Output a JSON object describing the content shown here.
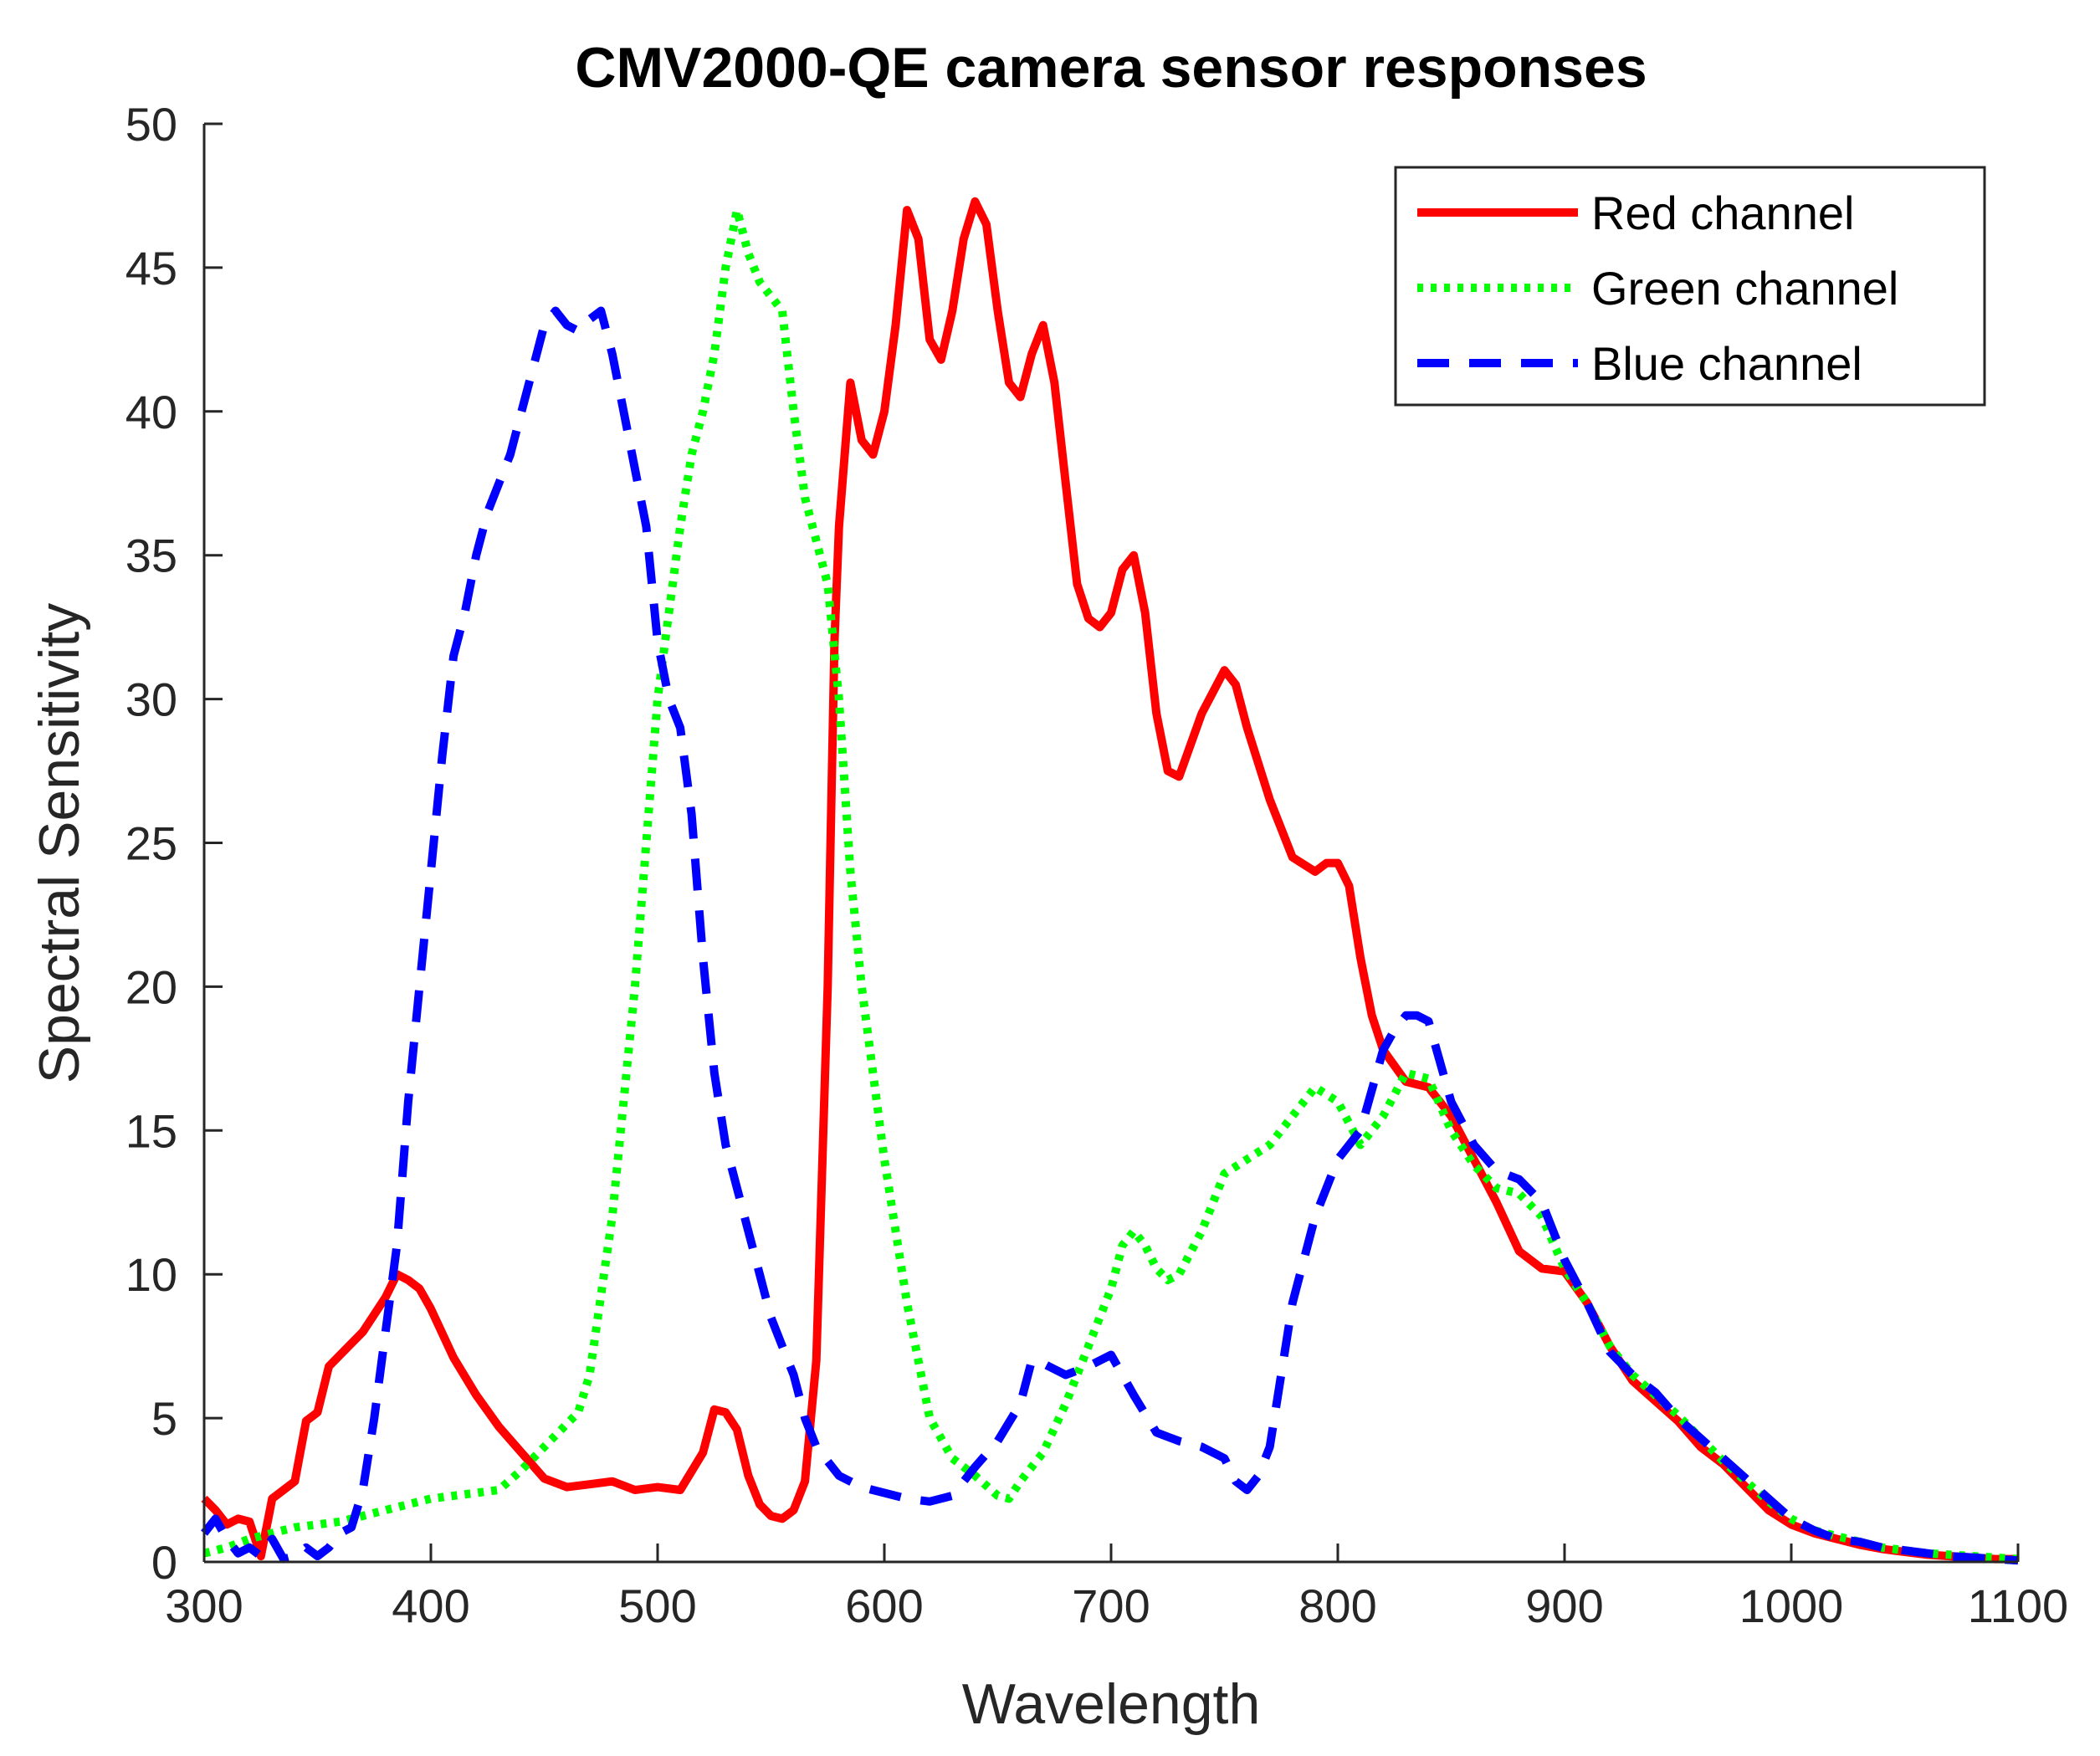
{
  "chart_data": {
    "type": "line",
    "title": "CMV2000-QE camera sensor responses",
    "xlabel": "Wavelength",
    "ylabel": "Spectral Sensitivity",
    "xlim": [
      300,
      1100
    ],
    "ylim": [
      0,
      50
    ],
    "xticks": [
      300,
      400,
      500,
      600,
      700,
      800,
      900,
      1000,
      1100
    ],
    "yticks": [
      0,
      5,
      10,
      15,
      20,
      25,
      30,
      35,
      40,
      45,
      50
    ],
    "grid": false,
    "legend_position": "top-right",
    "series": [
      {
        "name": "Red channel",
        "color": "#ff0000",
        "style": "solid",
        "x": [
          300,
          305,
          310,
          315,
          320,
          325,
          327,
          330,
          335,
          340,
          345,
          350,
          355,
          360,
          370,
          380,
          385,
          390,
          395,
          400,
          410,
          420,
          430,
          440,
          450,
          460,
          470,
          480,
          490,
          500,
          510,
          520,
          525,
          530,
          535,
          540,
          545,
          550,
          555,
          560,
          565,
          570,
          575,
          578,
          580,
          585,
          590,
          595,
          600,
          605,
          610,
          615,
          620,
          625,
          630,
          635,
          640,
          645,
          650,
          655,
          660,
          665,
          670,
          675,
          680,
          685,
          690,
          695,
          700,
          705,
          710,
          715,
          720,
          725,
          730,
          740,
          750,
          755,
          760,
          770,
          780,
          790,
          795,
          800,
          805,
          810,
          815,
          820,
          830,
          840,
          850,
          860,
          870,
          880,
          890,
          900,
          910,
          920,
          930,
          940,
          950,
          960,
          970,
          980,
          990,
          1000,
          1010,
          1020,
          1030,
          1040,
          1050,
          1060,
          1070,
          1080,
          1090,
          1100
        ],
        "y": [
          2.2,
          1.8,
          1.3,
          1.5,
          1.4,
          0.2,
          1.0,
          2.2,
          2.5,
          2.8,
          4.9,
          5.2,
          6.8,
          7.2,
          8.0,
          9.2,
          10.0,
          9.8,
          9.5,
          8.8,
          7.1,
          5.8,
          4.7,
          3.8,
          2.9,
          2.6,
          2.7,
          2.8,
          2.5,
          2.6,
          2.5,
          3.8,
          5.3,
          5.2,
          4.6,
          3.0,
          2.0,
          1.6,
          1.5,
          1.8,
          2.8,
          7.0,
          20.0,
          32.0,
          36.0,
          41.0,
          39.0,
          38.5,
          40.0,
          43.0,
          47.0,
          46.0,
          42.5,
          41.8,
          43.5,
          46.0,
          47.3,
          46.5,
          43.5,
          41.0,
          40.5,
          42.0,
          43.0,
          41.0,
          37.5,
          34.0,
          32.8,
          32.5,
          33.0,
          34.5,
          35.0,
          33.0,
          29.5,
          27.5,
          27.3,
          29.5,
          31.0,
          30.5,
          29.0,
          26.5,
          24.5,
          24.0,
          24.3,
          24.3,
          23.5,
          21.0,
          19.0,
          17.8,
          16.7,
          16.5,
          15.5,
          14.0,
          12.5,
          10.8,
          10.2,
          10.1,
          9.0,
          7.5,
          6.3,
          5.6,
          4.9,
          4.0,
          3.4,
          2.6,
          1.8,
          1.3,
          1.0,
          0.8,
          0.6,
          0.45,
          0.35,
          0.25,
          0.2,
          0.15,
          0.1,
          0.1
        ]
      },
      {
        "name": "Green channel",
        "color": "#00ff00",
        "style": "dotted",
        "x": [
          300,
          310,
          320,
          330,
          340,
          350,
          360,
          370,
          380,
          390,
          400,
          410,
          420,
          430,
          440,
          450,
          460,
          465,
          470,
          480,
          490,
          500,
          505,
          510,
          515,
          520,
          525,
          530,
          535,
          540,
          545,
          550,
          555,
          560,
          565,
          570,
          575,
          580,
          585,
          590,
          600,
          610,
          620,
          630,
          640,
          650,
          655,
          660,
          670,
          680,
          690,
          700,
          705,
          710,
          715,
          720,
          725,
          730,
          740,
          750,
          760,
          770,
          780,
          790,
          800,
          810,
          820,
          830,
          840,
          850,
          860,
          870,
          880,
          890,
          900,
          910,
          920,
          930,
          940,
          950,
          960,
          970,
          980,
          990,
          1000,
          1010,
          1020,
          1030,
          1040,
          1050,
          1060,
          1070,
          1080,
          1090,
          1100
        ],
        "y": [
          0.3,
          0.5,
          0.8,
          1.0,
          1.2,
          1.3,
          1.4,
          1.6,
          1.8,
          2.0,
          2.2,
          2.3,
          2.4,
          2.5,
          3.2,
          4.0,
          4.8,
          5.2,
          6.5,
          12.0,
          20.0,
          30.0,
          33.0,
          36.0,
          38.5,
          40.0,
          42.0,
          45.0,
          47.0,
          45.5,
          44.5,
          44.0,
          43.5,
          40.0,
          37.0,
          35.5,
          34.0,
          30.0,
          24.0,
          20.0,
          14.0,
          9.0,
          5.0,
          3.6,
          3.0,
          2.3,
          2.2,
          2.8,
          3.8,
          5.5,
          7.5,
          9.5,
          11.0,
          11.5,
          11.0,
          10.2,
          9.8,
          10.0,
          11.5,
          13.5,
          14.0,
          14.5,
          15.5,
          16.5,
          16.0,
          14.5,
          15.5,
          17.0,
          16.8,
          15.0,
          13.8,
          13.0,
          12.8,
          12.0,
          10.2,
          9.0,
          7.5,
          6.5,
          5.8,
          5.1,
          4.3,
          3.5,
          2.8,
          2.1,
          1.5,
          1.1,
          0.9,
          0.7,
          0.5,
          0.4,
          0.3,
          0.25,
          0.2,
          0.15,
          0.1
        ]
      },
      {
        "name": "Blue channel",
        "color": "#0000ff",
        "style": "dashed",
        "x": [
          300,
          305,
          310,
          315,
          320,
          325,
          330,
          335,
          340,
          345,
          350,
          355,
          360,
          365,
          370,
          375,
          380,
          385,
          390,
          395,
          400,
          405,
          410,
          415,
          420,
          425,
          430,
          435,
          440,
          445,
          450,
          455,
          460,
          465,
          470,
          475,
          480,
          485,
          490,
          495,
          500,
          505,
          510,
          515,
          520,
          525,
          530,
          535,
          540,
          545,
          550,
          555,
          560,
          565,
          570,
          580,
          590,
          600,
          610,
          620,
          630,
          640,
          650,
          660,
          665,
          670,
          680,
          690,
          700,
          710,
          720,
          730,
          740,
          750,
          755,
          760,
          765,
          770,
          780,
          790,
          800,
          810,
          820,
          825,
          830,
          835,
          840,
          850,
          860,
          870,
          880,
          890,
          900,
          910,
          920,
          930,
          940,
          950,
          960,
          970,
          980,
          990,
          1000,
          1010,
          1020,
          1030,
          1040,
          1050,
          1060,
          1070,
          1080,
          1090,
          1100
        ],
        "y": [
          1.0,
          1.5,
          0.8,
          0.3,
          0.5,
          0.2,
          0.8,
          0.1,
          0.2,
          0.5,
          0.2,
          0.5,
          1.0,
          1.2,
          2.5,
          5.0,
          8.0,
          11.0,
          16.0,
          20.0,
          24.0,
          28.0,
          31.5,
          33.0,
          35.0,
          36.5,
          37.5,
          38.5,
          40.0,
          41.5,
          43.0,
          43.5,
          43.0,
          42.8,
          43.2,
          43.5,
          42.0,
          40.0,
          38.0,
          36.0,
          32.0,
          30.0,
          29.0,
          26.0,
          21.0,
          17.0,
          14.5,
          13.0,
          11.5,
          10.0,
          8.5,
          7.5,
          6.5,
          5.0,
          4.0,
          3.0,
          2.6,
          2.4,
          2.2,
          2.1,
          2.3,
          3.3,
          4.2,
          5.5,
          7.0,
          6.9,
          6.5,
          6.8,
          7.2,
          5.8,
          4.5,
          4.2,
          4.0,
          3.6,
          2.8,
          2.5,
          3.0,
          4.0,
          9.0,
          12.0,
          14.0,
          15.0,
          17.8,
          18.5,
          19.0,
          19.0,
          18.8,
          16.0,
          14.5,
          13.6,
          13.3,
          12.5,
          10.5,
          9.0,
          7.3,
          6.5,
          5.9,
          5.0,
          4.3,
          3.6,
          2.9,
          2.2,
          1.5,
          1.1,
          0.8,
          0.7,
          0.5,
          0.4,
          0.3,
          0.2,
          0.15,
          0.1,
          0.05
        ]
      }
    ]
  }
}
